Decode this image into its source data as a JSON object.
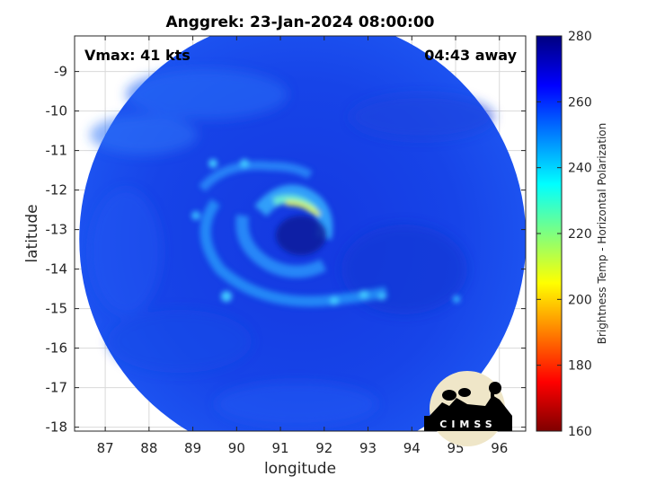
{
  "chart_data": {
    "type": "heatmap",
    "title": "Anggrek: 23-Jan-2024 08:00:00",
    "xlabel": "longitude",
    "ylabel": "latitude",
    "xlim": [
      86.3,
      96.6
    ],
    "ylim": [
      -18.1,
      -8.1
    ],
    "xticks": [
      "87",
      "88",
      "89",
      "90",
      "91",
      "92",
      "93",
      "94",
      "95",
      "96"
    ],
    "yticks": [
      "-9",
      "-10",
      "-11",
      "-12",
      "-13",
      "-14",
      "-15",
      "-16",
      "-17",
      "-18"
    ],
    "grid": true,
    "annotations": {
      "vmax": "Vmax: 41 kts",
      "away": "04:43 away"
    },
    "colorbar": {
      "label": "Brightness Temp - Horizontal Polarization",
      "range": [
        160,
        280
      ],
      "ticks": [
        "280",
        "260",
        "240",
        "220",
        "200",
        "180",
        "160"
      ],
      "colormap": "jet"
    },
    "storm_center": {
      "lon": 91.2,
      "lat": -13.2
    },
    "swath_radius_deg": 5.1,
    "logo_text": "CIMSS"
  }
}
